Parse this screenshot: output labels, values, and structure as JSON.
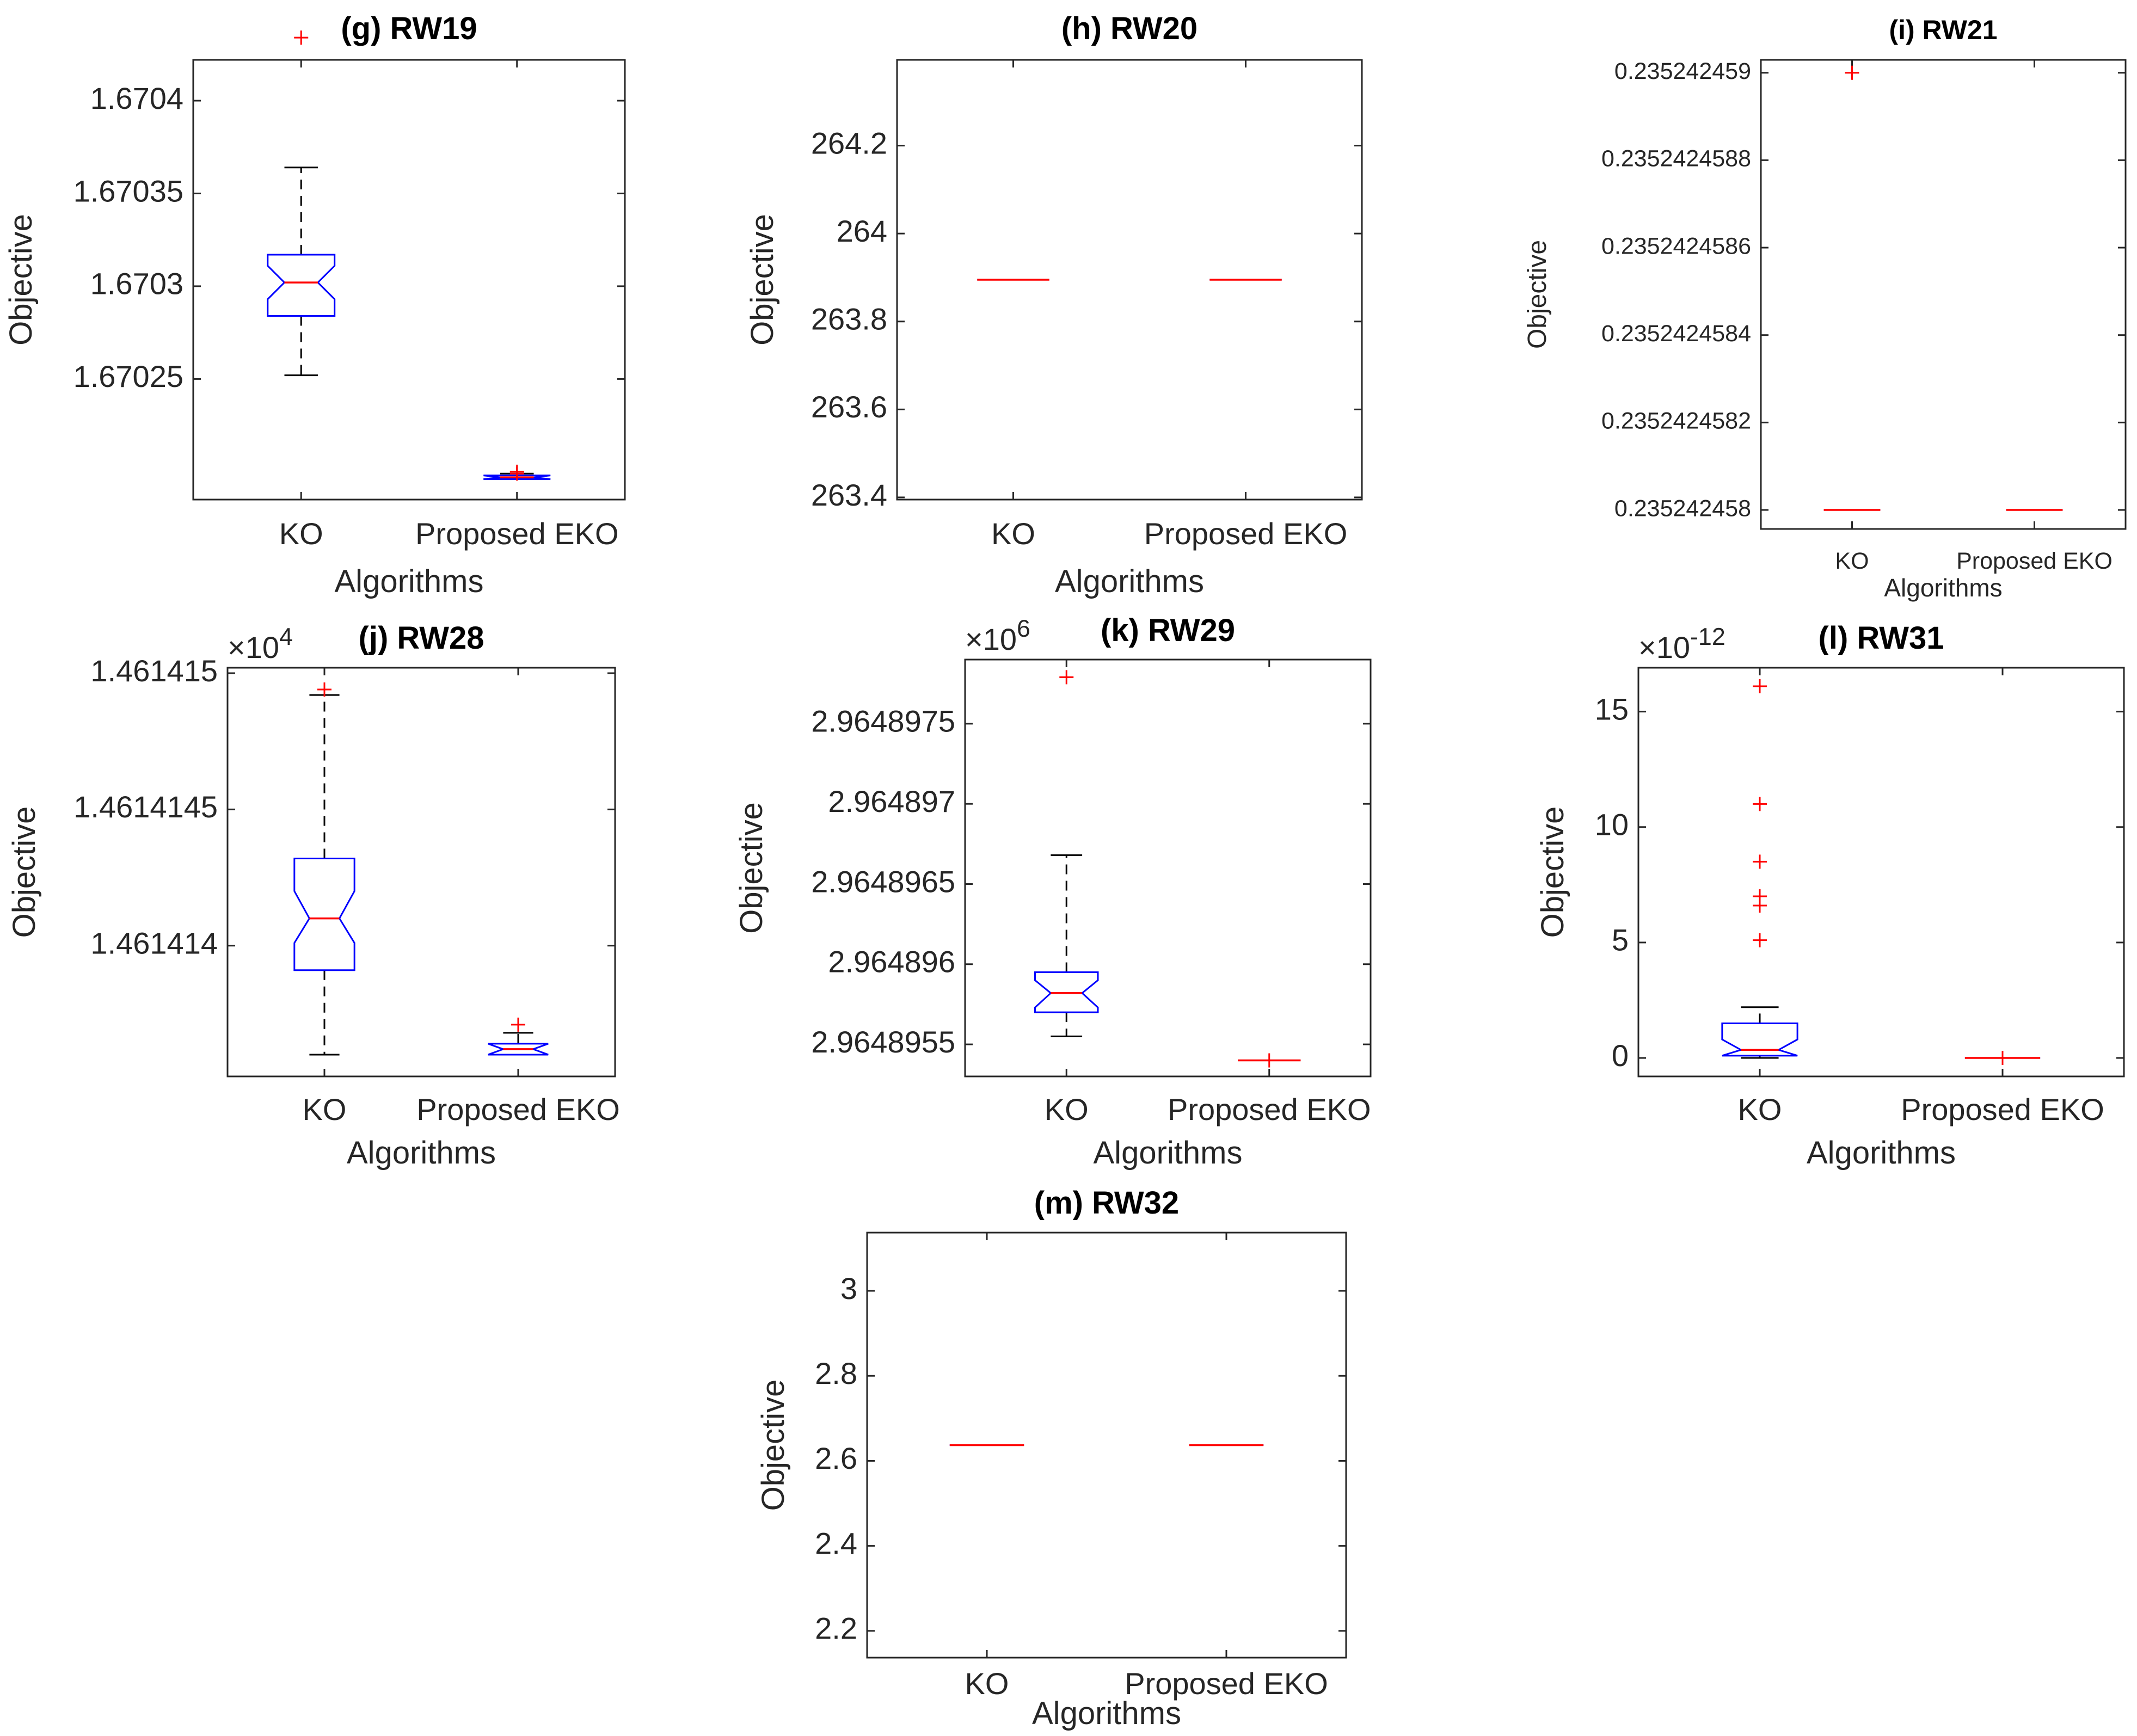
{
  "chart_data": [
    {
      "type": "box",
      "panel": "g",
      "title": "(g) RW19",
      "xlabel": "Algorithms",
      "ylabel": "Objective",
      "exponent": "",
      "categories": [
        "KO",
        "Proposed EKO"
      ],
      "ylim": [
        1.670185,
        1.670422
      ],
      "yticks": [
        1.67025,
        1.6703,
        1.67035,
        1.6704
      ],
      "yticklabels": [
        "1.67025",
        "1.6703",
        "1.67035",
        "1.6704"
      ],
      "boxes": [
        {
          "label": "KO",
          "lower_whisker": 1.670252,
          "q1": 1.670284,
          "median": 1.670302,
          "q3": 1.670317,
          "upper_whisker": 1.670364,
          "notch_low": 1.670293,
          "notch_high": 1.670311,
          "outliers": [
            1.670434
          ]
        },
        {
          "label": "Proposed EKO",
          "lower_whisker": 1.670196,
          "q1": 1.670196,
          "median": 1.670197,
          "q3": 1.670198,
          "upper_whisker": 1.670199,
          "notch_low": 1.670196,
          "notch_high": 1.670198,
          "outliers": [
            1.670199,
            1.6702
          ]
        }
      ]
    },
    {
      "type": "box",
      "panel": "h",
      "title": "(h) RW20",
      "xlabel": "Algorithms",
      "ylabel": "Objective",
      "exponent": "",
      "categories": [
        "KO",
        "Proposed EKO"
      ],
      "ylim": [
        263.395,
        264.395
      ],
      "yticks": [
        263.4,
        263.6,
        263.8,
        264,
        264.2
      ],
      "yticklabels": [
        "263.4",
        "263.6",
        "263.8",
        "264",
        "264.2"
      ],
      "boxes": [
        {
          "label": "KO",
          "lower_whisker": 263.895,
          "q1": 263.895,
          "median": 263.895,
          "q3": 263.895,
          "upper_whisker": 263.895,
          "notch_low": 263.895,
          "notch_high": 263.895,
          "outliers": []
        },
        {
          "label": "Proposed EKO",
          "lower_whisker": 263.895,
          "q1": 263.895,
          "median": 263.895,
          "q3": 263.895,
          "upper_whisker": 263.895,
          "notch_low": 263.895,
          "notch_high": 263.895,
          "outliers": []
        }
      ]
    },
    {
      "type": "box",
      "panel": "i",
      "title": "(i) RW21",
      "xlabel": "Algorithms",
      "ylabel": "Objective",
      "exponent": "",
      "categories": [
        "KO",
        "Proposed EKO"
      ],
      "ylim": [
        0.2352424579565,
        0.2352424590295
      ],
      "yticks": [
        0.235242458,
        0.2352424582,
        0.2352424584,
        0.2352424586,
        0.2352424588,
        0.235242459
      ],
      "yticklabels": [
        "0.235242458",
        "0.2352424582",
        "0.2352424584",
        "0.2352424586",
        "0.2352424588",
        "0.235242459"
      ],
      "boxes": [
        {
          "label": "KO",
          "lower_whisker": 0.235242458,
          "q1": 0.235242458,
          "median": 0.235242458,
          "q3": 0.235242458,
          "upper_whisker": 0.235242458,
          "notch_low": 0.235242458,
          "notch_high": 0.235242458,
          "outliers": [
            0.235242459
          ]
        },
        {
          "label": "Proposed EKO",
          "lower_whisker": 0.235242458,
          "q1": 0.235242458,
          "median": 0.235242458,
          "q3": 0.235242458,
          "upper_whisker": 0.235242458,
          "notch_low": 0.235242458,
          "notch_high": 0.235242458,
          "outliers": []
        }
      ]
    },
    {
      "type": "box",
      "panel": "j",
      "title": "(j) RW28",
      "xlabel": "Algorithms",
      "ylabel": "Objective",
      "exponent": "×10^4",
      "exponent_base": "×10",
      "exponent_power": "4",
      "categories": [
        "KO",
        "Proposed EKO"
      ],
      "ylim": [
        1.46141352,
        1.46141502
      ],
      "yticks": [
        1.461414,
        1.4614145,
        1.461415
      ],
      "yticklabels": [
        "1.461414",
        "1.4614145",
        "1.461415"
      ],
      "boxes": [
        {
          "label": "KO",
          "lower_whisker": 1.4614136,
          "q1": 1.46141391,
          "median": 1.4614141,
          "q3": 1.46141432,
          "upper_whisker": 1.46141492,
          "notch_low": 1.46141401,
          "notch_high": 1.4614142,
          "outliers": [
            1.46141494
          ]
        },
        {
          "label": "Proposed EKO",
          "lower_whisker": 1.4614136,
          "q1": 1.4614136,
          "median": 1.46141362,
          "q3": 1.46141364,
          "upper_whisker": 1.46141368,
          "notch_low": 1.4614136,
          "notch_high": 1.46141364,
          "outliers": [
            1.46141371
          ]
        }
      ]
    },
    {
      "type": "box",
      "panel": "k",
      "title": "(k) RW29",
      "xlabel": "Algorithms",
      "ylabel": "Objective",
      "exponent": "×10^6",
      "exponent_base": "×10",
      "exponent_power": "6",
      "categories": [
        "KO",
        "Proposed EKO"
      ],
      "ylim": [
        2.9648953,
        2.9648979
      ],
      "yticks": [
        2.9648955,
        2.964896,
        2.9648965,
        2.964897,
        2.9648975
      ],
      "yticklabels": [
        "2.9648955",
        "2.964896",
        "2.9648965",
        "2.964897",
        "2.9648975"
      ],
      "boxes": [
        {
          "label": "KO",
          "lower_whisker": 2.96489555,
          "q1": 2.9648957,
          "median": 2.96489582,
          "q3": 2.96489595,
          "upper_whisker": 2.96489668,
          "notch_low": 2.96489573,
          "notch_high": 2.9648959,
          "outliers": [
            2.96489779
          ]
        },
        {
          "label": "Proposed EKO",
          "lower_whisker": 2.9648954,
          "q1": 2.9648954,
          "median": 2.9648954,
          "q3": 2.9648954,
          "upper_whisker": 2.9648954,
          "notch_low": 2.9648954,
          "notch_high": 2.9648954,
          "outliers": [
            2.9648954
          ]
        }
      ]
    },
    {
      "type": "box",
      "panel": "l",
      "title": "(l) RW31",
      "xlabel": "Algorithms",
      "ylabel": "Objective",
      "exponent": "×10^-12",
      "exponent_base": "×10",
      "exponent_power": "-12",
      "categories": [
        "KO",
        "Proposed EKO"
      ],
      "ylim": [
        -0.8,
        16.9
      ],
      "yticks": [
        0,
        5,
        10,
        15
      ],
      "yticklabels": [
        "0",
        "5",
        "10",
        "15"
      ],
      "boxes": [
        {
          "label": "KO",
          "lower_whisker": 0.0,
          "q1": 0.1,
          "median": 0.35,
          "q3": 1.5,
          "upper_whisker": 2.2,
          "notch_low": 0.1,
          "notch_high": 0.8,
          "outliers": [
            5.1,
            6.6,
            7.0,
            8.5,
            11.0,
            16.1
          ]
        },
        {
          "label": "Proposed EKO",
          "lower_whisker": 0.0,
          "q1": 0.0,
          "median": 0.0,
          "q3": 0.0,
          "upper_whisker": 0.0,
          "notch_low": 0.0,
          "notch_high": 0.0,
          "outliers": [
            0.0
          ]
        }
      ]
    },
    {
      "type": "box",
      "panel": "m",
      "title": "(m) RW32",
      "xlabel": "Algorithms",
      "ylabel": "Objective",
      "exponent": "",
      "categories": [
        "KO",
        "Proposed EKO"
      ],
      "ylim": [
        2.137,
        3.137
      ],
      "yticks": [
        2.2,
        2.4,
        2.6,
        2.8,
        3
      ],
      "yticklabels": [
        "2.2",
        "2.4",
        "2.6",
        "2.8",
        "3"
      ],
      "boxes": [
        {
          "label": "KO",
          "lower_whisker": 2.637,
          "q1": 2.637,
          "median": 2.637,
          "q3": 2.637,
          "upper_whisker": 2.637,
          "notch_low": 2.637,
          "notch_high": 2.637,
          "outliers": []
        },
        {
          "label": "Proposed EKO",
          "lower_whisker": 2.637,
          "q1": 2.637,
          "median": 2.637,
          "q3": 2.637,
          "upper_whisker": 2.637,
          "notch_low": 2.637,
          "notch_high": 2.637,
          "outliers": []
        }
      ]
    }
  ],
  "colors": {
    "box": "#0000ff",
    "median": "#ff0000",
    "outlier": "#ff0000",
    "whisker": "#000000",
    "axes": "#262626"
  }
}
